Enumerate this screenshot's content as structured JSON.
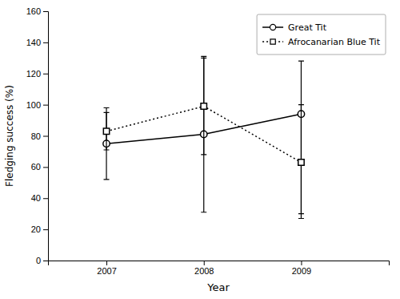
{
  "chart_data": {
    "type": "line",
    "xlabel": "Year",
    "ylabel": "Fledging success (%)",
    "x": [
      2007,
      2008,
      2009
    ],
    "xlim": [
      2006.4,
      2009.9
    ],
    "xticks": [
      2007,
      2008,
      2009
    ],
    "ylim": [
      0,
      160
    ],
    "yticks": [
      0,
      20,
      40,
      60,
      80,
      100,
      120,
      140,
      160
    ],
    "grid": false,
    "legend": "upper right",
    "series": [
      {
        "name": "Great Tit",
        "color": "#000000",
        "marker": "circle",
        "line_style": "solid",
        "values": [
          75,
          81,
          94
        ],
        "ci_lower": [
          52,
          31,
          30
        ],
        "ci_upper": [
          98,
          131,
          128
        ]
      },
      {
        "name": "Afrocanarian Blue Tit",
        "color": "#000000",
        "marker": "square",
        "line_style": "dotted",
        "values": [
          83,
          99,
          63
        ],
        "ci_lower": [
          71,
          68,
          27
        ],
        "ci_upper": [
          95,
          130,
          100
        ]
      }
    ]
  }
}
